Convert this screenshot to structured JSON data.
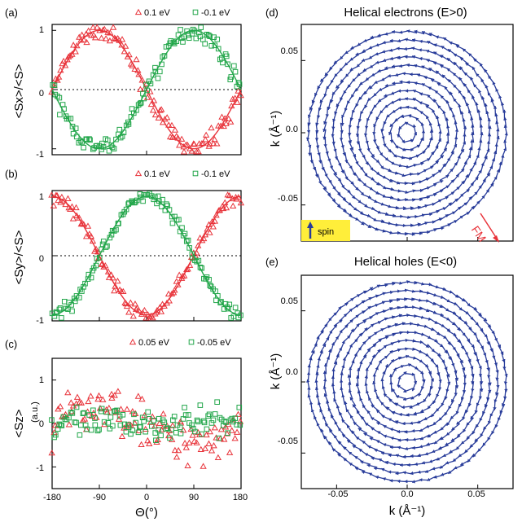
{
  "colors": {
    "red": "#e8333a",
    "green": "#22a64a",
    "blue": "#283c9a",
    "yellow": "#ffee3a",
    "black": "#000000"
  },
  "chart_data": [
    {
      "id": "a",
      "type": "scatter",
      "panel_label": "(a)",
      "ylabel": "<Sx>/<S>",
      "xlabel": "",
      "xlim": [
        -180,
        180
      ],
      "ylim": [
        -1.1,
        1.1
      ],
      "yticks": [
        "1",
        "0",
        "-1"
      ],
      "legend": "top-right",
      "zero_line": true,
      "series": [
        {
          "name": "0.1 eV",
          "marker": "triangle",
          "color": "#e8333a",
          "model": "-sin",
          "fit": true,
          "noise": 0.08
        },
        {
          "name": "-0.1 eV",
          "marker": "square",
          "color": "#22a64a",
          "model": "sin",
          "fit": true,
          "noise": 0.08
        }
      ]
    },
    {
      "id": "b",
      "type": "scatter",
      "panel_label": "(b)",
      "ylabel": "<Sy>/<S>",
      "xlabel": "",
      "xlim": [
        -180,
        180
      ],
      "ylim": [
        -1.1,
        1.1
      ],
      "yticks": [
        "1",
        "0",
        "-1"
      ],
      "legend": "top-right",
      "zero_line": true,
      "series": [
        {
          "name": "0.1 eV",
          "marker": "triangle",
          "color": "#e8333a",
          "model": "-cos",
          "fit": true,
          "noise": 0.07
        },
        {
          "name": "-0.1 eV",
          "marker": "square",
          "color": "#22a64a",
          "model": "cos",
          "fit": true,
          "noise": 0.07
        }
      ]
    },
    {
      "id": "c",
      "type": "scatter",
      "panel_label": "(c)",
      "ylabel": "<Sz>",
      "unit_label": "(a.u.)",
      "xlabel": "Θ(°)",
      "xlim": [
        -180,
        180
      ],
      "ylim": [
        -1.5,
        1.5
      ],
      "yticks": [
        "1",
        "0",
        "-1"
      ],
      "xticks": [
        "-180",
        "-90",
        "0",
        "90",
        "180"
      ],
      "legend": "top-right",
      "zero_line": false,
      "series": [
        {
          "name": "0.05 eV",
          "marker": "triangle",
          "color": "#e8333a",
          "model": "-0.4sin",
          "fit": false,
          "noise": 0.3
        },
        {
          "name": "-0.05 eV",
          "marker": "square",
          "color": "#22a64a",
          "model": "flat",
          "fit": false,
          "noise": 0.2
        }
      ]
    },
    {
      "id": "d",
      "type": "quiver",
      "panel_label": "(d)",
      "title": "Helical electrons (E>0)",
      "ylabel": "k (Å⁻¹)",
      "xlabel": "",
      "xlim": [
        -0.075,
        0.075
      ],
      "ylim": [
        -0.075,
        0.075
      ],
      "yticks": [
        "0.05",
        "0.0",
        "-0.05"
      ],
      "rotation": "counter-clockwise",
      "radius": 0.07,
      "spin_legend": "spin",
      "annotation": "FM"
    },
    {
      "id": "e",
      "type": "quiver",
      "panel_label": "(e)",
      "title": "Helical holes (E<0)",
      "ylabel": "k (Å⁻¹)",
      "xlabel": "k (Å⁻¹)",
      "xlim": [
        -0.075,
        0.075
      ],
      "ylim": [
        -0.075,
        0.075
      ],
      "yticks": [
        "0.05",
        "0.0",
        "-0.05"
      ],
      "xticks": [
        "-0.05",
        "0.0",
        "0.05"
      ],
      "rotation": "clockwise",
      "radius": 0.07
    }
  ]
}
